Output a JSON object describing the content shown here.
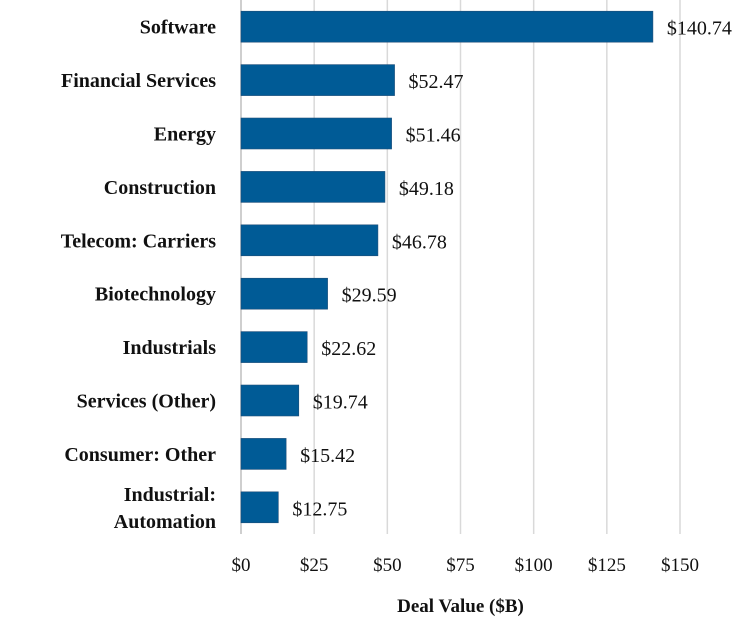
{
  "chart_data": {
    "type": "bar",
    "orientation": "horizontal",
    "title": "",
    "xlabel": "Deal Value ($B)",
    "ylabel": "",
    "categories": [
      [
        "Software"
      ],
      [
        "Financial Services"
      ],
      [
        "Energy"
      ],
      [
        "Construction"
      ],
      [
        "Telecom: Carriers"
      ],
      [
        "Biotechnology"
      ],
      [
        "Industrials"
      ],
      [
        "Services (Other)"
      ],
      [
        "Consumer: Other"
      ],
      [
        "Industrial:",
        "Automation"
      ]
    ],
    "values": [
      140.74,
      52.47,
      51.46,
      49.18,
      46.78,
      29.59,
      22.62,
      19.74,
      15.42,
      12.75
    ],
    "data_labels": [
      "$140.74",
      "$52.47",
      "$51.46",
      "$49.18",
      "$46.78",
      "$29.59",
      "$22.62",
      "$19.74",
      "$15.42",
      "$12.75"
    ],
    "xlim": [
      0,
      150
    ],
    "xticks": [
      0,
      25,
      50,
      75,
      100,
      125,
      150
    ],
    "xtick_labels": [
      "$0",
      "$25",
      "$50",
      "$75",
      "$100",
      "$125",
      "$150"
    ],
    "grid": "vertical",
    "legend": "none",
    "bar_color": "#005b96"
  }
}
